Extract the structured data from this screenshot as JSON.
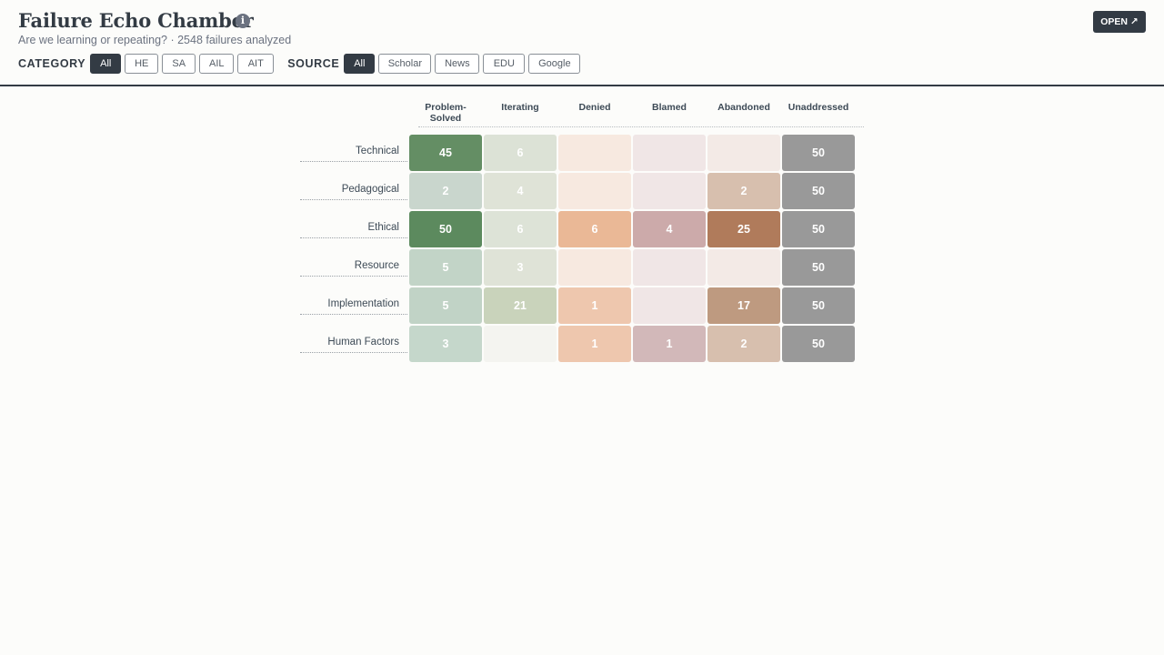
{
  "header": {
    "title": "Failure Echo Chamber",
    "info_symbol": "i",
    "subtitle": "Are we learning or repeating? · 2548 failures analyzed",
    "open_label": "OPEN ↗"
  },
  "filters": {
    "category": {
      "label": "CATEGORY",
      "options": [
        "All",
        "HE",
        "SA",
        "AIL",
        "AIT"
      ],
      "selected": "All"
    },
    "source": {
      "label": "SOURCE",
      "options": [
        "All",
        "Scholar",
        "News",
        "EDU",
        "Google"
      ],
      "selected": "All"
    }
  },
  "chart_data": {
    "type": "heatmap",
    "columns": [
      "Problem-\nSolved",
      "Iterating",
      "Denied",
      "Blamed",
      "Abandoned",
      "Unaddressed"
    ],
    "rows": [
      "Technical",
      "Pedagogical",
      "Ethical",
      "Resource",
      "Implementation",
      "Human Factors"
    ],
    "values": [
      [
        45,
        6,
        null,
        null,
        null,
        50
      ],
      [
        2,
        4,
        null,
        null,
        2,
        50
      ],
      [
        50,
        6,
        6,
        4,
        25,
        50
      ],
      [
        5,
        3,
        null,
        null,
        null,
        50
      ],
      [
        5,
        21,
        1,
        null,
        17,
        50
      ],
      [
        3,
        null,
        1,
        1,
        2,
        50
      ]
    ],
    "colors": [
      "#5c8a5e",
      "#c9d6c3",
      "#eab896",
      "#c9a7a8",
      "#b07b5b",
      "#999999"
    ],
    "cell_colors": [
      [
        "#648e64",
        "#dce2d6",
        "#f7e9e0",
        "#f0e6e6",
        "#f3eae6",
        "#999999"
      ],
      [
        "#c9d6cd",
        "#dfe3d7",
        "#f7e9e0",
        "#f0e6e6",
        "#d7bfae",
        "#999999"
      ],
      [
        "#5c8a5e",
        "#dde3d7",
        "#eab896",
        "#ccaaaa",
        "#b07b5b",
        "#999999"
      ],
      [
        "#c2d4c7",
        "#dfe3d7",
        "#f7e9e0",
        "#f0e6e6",
        "#f3eae6",
        "#999999"
      ],
      [
        "#c1d3c6",
        "#c9d3bb",
        "#eec7ae",
        "#f0e6e6",
        "#be9a80",
        "#999999"
      ],
      [
        "#c5d7cb",
        "#f4f4f0",
        "#eec7ae",
        "#d2b8b9",
        "#d7bfae",
        "#999999"
      ]
    ]
  }
}
